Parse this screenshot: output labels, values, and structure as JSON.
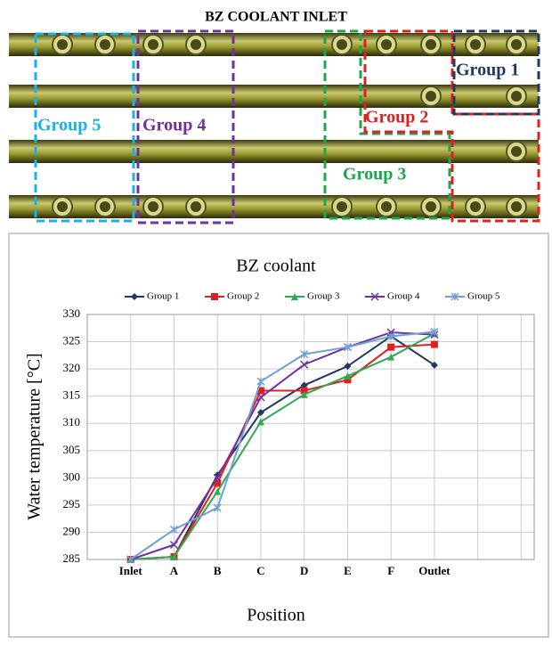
{
  "diagram": {
    "title": "BZ COOLANT INLET",
    "groups": [
      "Group 1",
      "Group 2",
      "Group 3",
      "Group 4",
      "Group 5"
    ]
  },
  "chart_data": {
    "type": "line",
    "title": "BZ coolant",
    "x_label": "Position",
    "y_label": "Water temperature [°C]",
    "categories": [
      null,
      "Inlet",
      "A",
      "B",
      "C",
      "D",
      "E",
      "F",
      "Outlet",
      null,
      null
    ],
    "ylim": [
      285,
      330
    ],
    "yticks": [
      285,
      290,
      295,
      300,
      305,
      310,
      315,
      320,
      325,
      330
    ],
    "grid": true,
    "legend": "top",
    "series": [
      {
        "name": "Group 1",
        "color": "#1f3864",
        "marker": "diamond",
        "values": [
          null,
          285,
          285.5,
          300.5,
          312,
          317,
          320.5,
          326,
          320.7,
          null,
          null
        ]
      },
      {
        "name": "Group 2",
        "color": "#e02020",
        "marker": "square",
        "values": [
          null,
          285,
          285.5,
          299,
          316,
          316,
          318,
          324,
          324.5,
          null,
          null
        ]
      },
      {
        "name": "Group 3",
        "color": "#2eaa50",
        "marker": "triangle",
        "values": [
          null,
          285,
          285.5,
          297.5,
          310.3,
          315.3,
          318.7,
          322.2,
          326.5,
          null,
          null
        ]
      },
      {
        "name": "Group 4",
        "color": "#7030a0",
        "marker": "x",
        "values": [
          null,
          285,
          287.7,
          300,
          314.8,
          320.8,
          324,
          326.7,
          326.3,
          null,
          null
        ]
      },
      {
        "name": "Group 5",
        "color": "#6fa0d8",
        "marker": "star",
        "values": [
          null,
          285,
          290.5,
          294.5,
          317.7,
          322.7,
          324,
          326,
          326.8,
          null,
          null
        ]
      }
    ]
  }
}
